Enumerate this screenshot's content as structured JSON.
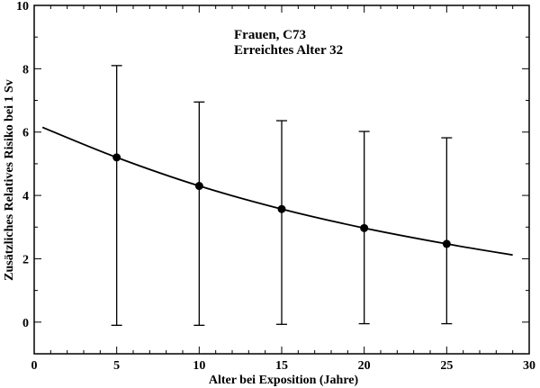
{
  "chart_data": {
    "type": "scatter",
    "annotations": [
      "Frauen, C73",
      "Erreichtes Alter 32"
    ],
    "xlabel": "Alter bei Exposition (Jahre)",
    "ylabel": "Zusätzliches Relatives Risiko bei 1 Sv",
    "xlim": [
      0,
      30
    ],
    "ylim": [
      -1,
      10
    ],
    "x_ticks": [
      0,
      5,
      10,
      15,
      20,
      25,
      30
    ],
    "y_ticks": [
      0,
      2,
      4,
      6,
      8,
      10
    ],
    "grid": false,
    "points": [
      {
        "x": 5,
        "y": 5.2,
        "y_low": -0.1,
        "y_high": 8.1
      },
      {
        "x": 10,
        "y": 4.3,
        "y_low": -0.1,
        "y_high": 6.95
      },
      {
        "x": 15,
        "y": 3.57,
        "y_low": -0.07,
        "y_high": 6.36
      },
      {
        "x": 20,
        "y": 2.97,
        "y_low": -0.05,
        "y_high": 6.02
      },
      {
        "x": 25,
        "y": 2.47,
        "y_low": -0.05,
        "y_high": 5.82
      }
    ],
    "fit_curve": [
      {
        "x": 0.5,
        "y": 6.15
      },
      {
        "x": 5,
        "y": 5.2
      },
      {
        "x": 10,
        "y": 4.3
      },
      {
        "x": 15,
        "y": 3.57
      },
      {
        "x": 20,
        "y": 2.97
      },
      {
        "x": 25,
        "y": 2.47
      },
      {
        "x": 29,
        "y": 2.12
      }
    ],
    "colors": {
      "line": "#000000",
      "marker": "#000000",
      "background": "#ffffff"
    }
  }
}
